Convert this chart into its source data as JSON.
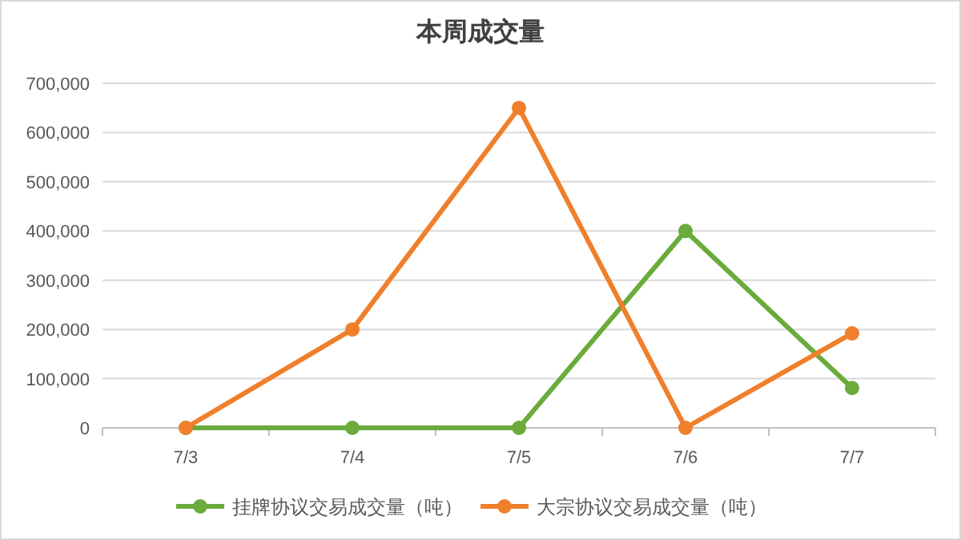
{
  "chart_data": {
    "type": "line",
    "title": "本周成交量",
    "categories": [
      "7/3",
      "7/4",
      "7/5",
      "7/6",
      "7/7"
    ],
    "series": [
      {
        "name": "挂牌协议交易成交量（吨）",
        "color": "#6aab3c",
        "values": [
          0,
          0,
          0,
          400000,
          81000
        ]
      },
      {
        "name": "大宗协议交易成交量（吨）",
        "color": "#f07f2b",
        "values": [
          0,
          200000,
          650000,
          0,
          192000
        ]
      }
    ],
    "ylim": [
      0,
      700000
    ],
    "yticks": [
      {
        "value": 0,
        "label": "0"
      },
      {
        "value": 100000,
        "label": "100,000"
      },
      {
        "value": 200000,
        "label": "200,000"
      },
      {
        "value": 300000,
        "label": "300,000"
      },
      {
        "value": 400000,
        "label": "400,000"
      },
      {
        "value": 500000,
        "label": "500,000"
      },
      {
        "value": 600000,
        "label": "600,000"
      },
      {
        "value": 700000,
        "label": "700,000"
      }
    ],
    "grid": "y",
    "legend": "bottom",
    "marker": "circle",
    "line_style": "solid"
  }
}
